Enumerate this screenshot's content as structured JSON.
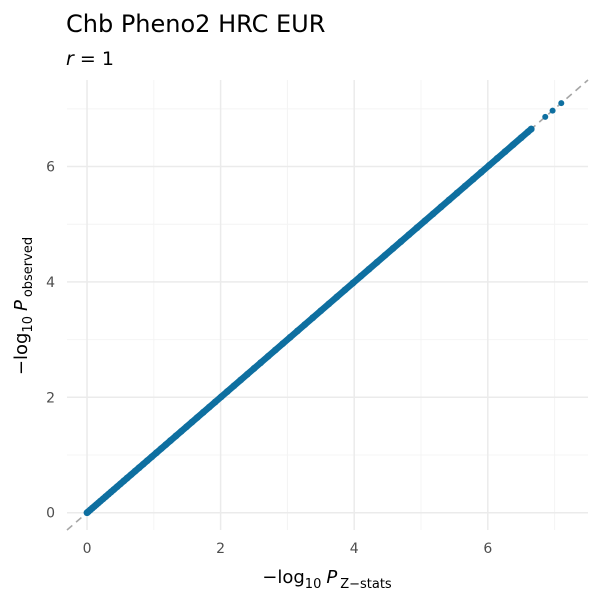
{
  "chart_data": {
    "type": "scatter",
    "title": "Chb Pheno2 HRC EUR",
    "subtitle": {
      "variable": "r",
      "operator": " = ",
      "value": "1"
    },
    "xlabel": {
      "prefix": "−log",
      "base": "10",
      "symbol": "P",
      "subscript": "Z−stats"
    },
    "ylabel": {
      "prefix": "−log",
      "base": "10",
      "symbol": "P",
      "subscript": "observed"
    },
    "xlim": [
      -0.3,
      7.5
    ],
    "ylim": [
      -0.3,
      7.5
    ],
    "x_ticks": [
      0,
      2,
      4,
      6
    ],
    "y_ticks": [
      0,
      2,
      4,
      6
    ],
    "x_tick_labels": [
      "0",
      "2",
      "4",
      "6"
    ],
    "y_tick_labels": [
      "0",
      "2",
      "4",
      "6"
    ],
    "grid": true,
    "reference_line": {
      "slope": 1,
      "intercept": 0,
      "style": "dashed",
      "color": "#a6a6a6"
    },
    "point_color": "#0e6fa0",
    "points": [
      [
        0.0,
        0.0
      ],
      [
        0.02,
        0.02
      ],
      [
        0.05,
        0.05
      ],
      [
        0.08,
        0.08
      ],
      [
        0.11,
        0.11
      ],
      [
        0.14,
        0.14
      ],
      [
        0.17,
        0.17
      ],
      [
        0.2,
        0.2
      ],
      [
        0.24,
        0.24
      ],
      [
        0.28,
        0.28
      ],
      [
        0.32,
        0.32
      ],
      [
        0.36,
        0.36
      ],
      [
        0.4,
        0.4
      ],
      [
        0.45,
        0.45
      ],
      [
        0.5,
        0.5
      ],
      [
        0.55,
        0.55
      ],
      [
        0.6,
        0.6
      ],
      [
        0.66,
        0.66
      ],
      [
        0.72,
        0.72
      ],
      [
        0.78,
        0.78
      ],
      [
        0.84,
        0.84
      ],
      [
        0.9,
        0.9
      ],
      [
        0.97,
        0.97
      ],
      [
        1.04,
        1.04
      ],
      [
        1.11,
        1.11
      ],
      [
        1.18,
        1.18
      ],
      [
        1.25,
        1.25
      ],
      [
        1.33,
        1.33
      ],
      [
        1.41,
        1.41
      ],
      [
        1.49,
        1.49
      ],
      [
        1.57,
        1.57
      ],
      [
        1.65,
        1.65
      ],
      [
        1.74,
        1.74
      ],
      [
        1.83,
        1.83
      ],
      [
        1.92,
        1.92
      ],
      [
        2.01,
        2.01
      ],
      [
        2.1,
        2.1
      ],
      [
        2.2,
        2.2
      ],
      [
        2.3,
        2.3
      ],
      [
        2.4,
        2.4
      ],
      [
        2.5,
        2.5
      ],
      [
        2.6,
        2.6
      ],
      [
        2.71,
        2.71
      ],
      [
        2.82,
        2.82
      ],
      [
        2.93,
        2.93
      ],
      [
        3.04,
        3.04
      ],
      [
        3.15,
        3.15
      ],
      [
        3.26,
        3.26
      ],
      [
        3.38,
        3.38
      ],
      [
        3.5,
        3.5
      ],
      [
        3.62,
        3.62
      ],
      [
        3.74,
        3.74
      ],
      [
        3.86,
        3.86
      ],
      [
        3.98,
        3.98
      ],
      [
        4.1,
        4.1
      ],
      [
        4.22,
        4.22
      ],
      [
        4.34,
        4.34
      ],
      [
        4.46,
        4.46
      ],
      [
        4.58,
        4.58
      ],
      [
        4.7,
        4.7
      ],
      [
        4.82,
        4.82
      ],
      [
        4.94,
        4.94
      ],
      [
        5.06,
        5.06
      ],
      [
        5.18,
        5.18
      ],
      [
        5.3,
        5.3
      ],
      [
        5.42,
        5.42
      ],
      [
        5.54,
        5.54
      ],
      [
        5.66,
        5.66
      ],
      [
        5.78,
        5.78
      ],
      [
        5.9,
        5.9
      ],
      [
        6.02,
        6.02
      ],
      [
        6.14,
        6.14
      ],
      [
        6.26,
        6.26
      ],
      [
        6.38,
        6.38
      ],
      [
        6.5,
        6.5
      ],
      [
        6.6,
        6.6
      ],
      [
        6.65,
        6.65
      ],
      [
        6.86,
        6.86
      ],
      [
        6.97,
        6.97
      ],
      [
        7.1,
        7.1
      ]
    ]
  }
}
